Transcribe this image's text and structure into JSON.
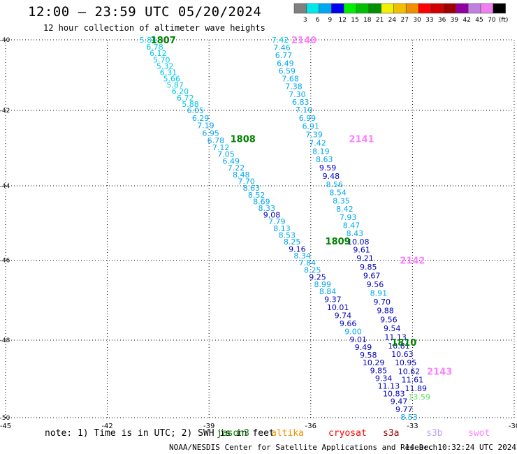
{
  "header": {
    "title": "12:00 – 23:59 UTC 05/20/2024",
    "subtitle": "12 hour collection of altimeter wave heights"
  },
  "colorbar": {
    "unit_label": "(ft)",
    "levels": [
      {
        "label": "3",
        "color": "#808080"
      },
      {
        "label": "6",
        "color": "#00e8e8"
      },
      {
        "label": "9",
        "color": "#00a8f0"
      },
      {
        "label": "12",
        "color": "#0000f0"
      },
      {
        "label": "15",
        "color": "#00f000"
      },
      {
        "label": "18",
        "color": "#00c000"
      },
      {
        "label": "21",
        "color": "#009000"
      },
      {
        "label": "24",
        "color": "#f0f000"
      },
      {
        "label": "27",
        "color": "#f0c000"
      },
      {
        "label": "30",
        "color": "#f09000"
      },
      {
        "label": "33",
        "color": "#ff0000"
      },
      {
        "label": "36",
        "color": "#d00000"
      },
      {
        "label": "39",
        "color": "#a00000"
      },
      {
        "label": "42",
        "color": "#9000a0"
      },
      {
        "label": "45",
        "color": "#c080e0"
      },
      {
        "label": "70",
        "color": "#f080f0"
      },
      {
        "label": "",
        "color": "#000000"
      }
    ]
  },
  "footer": {
    "note": "note: 1) Time is in UTC; 2) SWH is in feet",
    "credit": "NOAA/NESDIS Center for Satellite Applications and Research",
    "timestamp": "14 Dec 10:32:24 UTC 2024",
    "satellites": [
      {
        "name": "jason3",
        "color": "#008000"
      },
      {
        "name": "altika",
        "color": "#f09000"
      },
      {
        "name": "cryosat",
        "color": "#ff0000"
      },
      {
        "name": "s3a",
        "color": "#a00000"
      },
      {
        "name": "s3b",
        "color": "#c0a0ff"
      },
      {
        "name": "swot",
        "color": "#ff80ff"
      }
    ]
  },
  "chart_data": {
    "type": "scatter",
    "title": "12:00 – 23:59 UTC 05/20/2024",
    "subtitle": "12 hour collection of altimeter wave heights",
    "xlabel": "",
    "ylabel": "",
    "xlim": [
      -45,
      -30
    ],
    "ylim": [
      -50,
      -40
    ],
    "xticks": [
      -45,
      -42,
      -39,
      -36,
      -33,
      -30
    ],
    "yticks": [
      -40,
      -42,
      -44,
      -46,
      -48,
      -50
    ],
    "grid": true,
    "colors": {
      "light": "#00c8e8",
      "mid": "#00a8f0",
      "dark": "#0000c0",
      "lime": "#60e060"
    },
    "series": [
      {
        "name": "jason3",
        "points": [
          {
            "x": -40.8,
            "y": -40.0,
            "v": "5.84",
            "c": "light"
          },
          {
            "x": -40.6,
            "y": -40.2,
            "v": "6.78",
            "c": "light"
          },
          {
            "x": -40.5,
            "y": -40.38,
            "v": "6.12",
            "c": "light"
          },
          {
            "x": -40.4,
            "y": -40.56,
            "v": "5.70",
            "c": "light"
          },
          {
            "x": -40.3,
            "y": -40.74,
            "v": "5.32",
            "c": "light"
          },
          {
            "x": -40.2,
            "y": -40.92,
            "v": "6.31",
            "c": "light"
          },
          {
            "x": -40.1,
            "y": -41.1,
            "v": "5.66",
            "c": "light"
          },
          {
            "x": -40.0,
            "y": -41.28,
            "v": "5.87",
            "c": "light"
          },
          {
            "x": -39.85,
            "y": -41.46,
            "v": "6.20",
            "c": "light"
          },
          {
            "x": -39.7,
            "y": -41.64,
            "v": "6.72",
            "c": "light"
          },
          {
            "x": -39.55,
            "y": -41.82,
            "v": "5.88",
            "c": "light"
          },
          {
            "x": -39.4,
            "y": -42.0,
            "v": "6.05",
            "c": "mid"
          },
          {
            "x": -39.25,
            "y": -42.2,
            "v": "6.29",
            "c": "mid"
          },
          {
            "x": -39.1,
            "y": -42.4,
            "v": "7.19",
            "c": "mid"
          },
          {
            "x": -38.95,
            "y": -42.6,
            "v": "6.95",
            "c": "mid"
          },
          {
            "x": -38.8,
            "y": -42.8,
            "v": "6.78",
            "c": "mid"
          },
          {
            "x": -38.65,
            "y": -42.98,
            "v": "7.12",
            "c": "mid"
          },
          {
            "x": -38.5,
            "y": -43.16,
            "v": "7.05",
            "c": "mid"
          },
          {
            "x": -38.35,
            "y": -43.34,
            "v": "6.49",
            "c": "mid"
          },
          {
            "x": -38.2,
            "y": -43.52,
            "v": "7.22",
            "c": "mid"
          },
          {
            "x": -38.05,
            "y": -43.7,
            "v": "8.48",
            "c": "mid"
          },
          {
            "x": -37.9,
            "y": -43.88,
            "v": "7.70",
            "c": "mid"
          },
          {
            "x": -37.75,
            "y": -44.06,
            "v": "8.63",
            "c": "mid"
          },
          {
            "x": -37.6,
            "y": -44.24,
            "v": "8.52",
            "c": "mid"
          },
          {
            "x": -37.45,
            "y": -44.42,
            "v": "8.69",
            "c": "mid"
          },
          {
            "x": -37.3,
            "y": -44.6,
            "v": "8.33",
            "c": "mid"
          },
          {
            "x": -37.15,
            "y": -44.78,
            "v": "9.08",
            "c": "dark"
          },
          {
            "x": -37.0,
            "y": -44.96,
            "v": "7.79",
            "c": "mid"
          },
          {
            "x": -36.85,
            "y": -45.14,
            "v": "8.13",
            "c": "mid"
          },
          {
            "x": -36.7,
            "y": -45.32,
            "v": "8.53",
            "c": "mid"
          },
          {
            "x": -36.55,
            "y": -45.5,
            "v": "8.25",
            "c": "mid"
          },
          {
            "x": -36.4,
            "y": -45.7,
            "v": "9.16",
            "c": "dark"
          },
          {
            "x": -36.25,
            "y": -45.88,
            "v": "8.34",
            "c": "mid"
          },
          {
            "x": -36.1,
            "y": -46.06,
            "v": "7.84",
            "c": "mid"
          },
          {
            "x": -35.95,
            "y": -46.24,
            "v": "8.25",
            "c": "mid"
          },
          {
            "x": -35.8,
            "y": -46.42,
            "v": "9.25",
            "c": "dark"
          },
          {
            "x": -35.65,
            "y": -46.6,
            "v": "8.99",
            "c": "mid"
          },
          {
            "x": -35.5,
            "y": -46.78,
            "v": "8.84",
            "c": "mid"
          },
          {
            "x": -35.35,
            "y": -46.98,
            "v": "9.37",
            "c": "dark"
          },
          {
            "x": -35.2,
            "y": -47.18,
            "v": "10.01",
            "c": "dark"
          },
          {
            "x": -35.05,
            "y": -47.38,
            "v": "9.74",
            "c": "dark"
          },
          {
            "x": -34.9,
            "y": -47.58,
            "v": "9.66",
            "c": "dark"
          },
          {
            "x": -34.75,
            "y": -47.78,
            "v": "9.00",
            "c": "mid"
          },
          {
            "x": -34.6,
            "y": -47.98,
            "v": "9.01",
            "c": "dark"
          },
          {
            "x": -34.45,
            "y": -48.18,
            "v": "9.49",
            "c": "dark"
          },
          {
            "x": -34.3,
            "y": -48.38,
            "v": "9.58",
            "c": "dark"
          },
          {
            "x": -34.15,
            "y": -48.58,
            "v": "10.29",
            "c": "dark"
          },
          {
            "x": -34.0,
            "y": -48.78,
            "v": "9.85",
            "c": "dark"
          },
          {
            "x": -33.85,
            "y": -48.98,
            "v": "9.34",
            "c": "dark"
          },
          {
            "x": -33.7,
            "y": -49.18,
            "v": "11.13",
            "c": "dark"
          },
          {
            "x": -33.55,
            "y": -49.38,
            "v": "10.83",
            "c": "dark"
          },
          {
            "x": -33.4,
            "y": -49.58,
            "v": "9.47",
            "c": "dark"
          },
          {
            "x": -33.25,
            "y": -49.78,
            "v": "9.77",
            "c": "dark"
          },
          {
            "x": -33.1,
            "y": -49.98,
            "v": "8.53",
            "c": "mid"
          }
        ]
      },
      {
        "name": "swot",
        "points": [
          {
            "x": -36.9,
            "y": -40.0,
            "v": "7.42",
            "c": "light"
          },
          {
            "x": -36.85,
            "y": -40.22,
            "v": "7.46",
            "c": "mid"
          },
          {
            "x": -36.8,
            "y": -40.44,
            "v": "6.77",
            "c": "mid"
          },
          {
            "x": -36.75,
            "y": -40.66,
            "v": "6.49",
            "c": "mid"
          },
          {
            "x": -36.7,
            "y": -40.88,
            "v": "6.59",
            "c": "mid"
          },
          {
            "x": -36.6,
            "y": -41.1,
            "v": "7.68",
            "c": "mid"
          },
          {
            "x": -36.5,
            "y": -41.32,
            "v": "7.38",
            "c": "mid"
          },
          {
            "x": -36.4,
            "y": -41.54,
            "v": "7.30",
            "c": "mid"
          },
          {
            "x": -36.3,
            "y": -41.76,
            "v": "6.83",
            "c": "mid"
          },
          {
            "x": -36.2,
            "y": -41.98,
            "v": "7.10",
            "c": "mid"
          },
          {
            "x": -36.1,
            "y": -42.2,
            "v": "6.99",
            "c": "mid"
          },
          {
            "x": -36.0,
            "y": -42.42,
            "v": "6.91",
            "c": "mid"
          },
          {
            "x": -35.9,
            "y": -42.64,
            "v": "7.39",
            "c": "mid"
          },
          {
            "x": -35.8,
            "y": -42.86,
            "v": "7.42",
            "c": "mid"
          },
          {
            "x": -35.7,
            "y": -43.08,
            "v": "8.19",
            "c": "mid"
          },
          {
            "x": -35.6,
            "y": -43.3,
            "v": "8.63",
            "c": "mid"
          },
          {
            "x": -35.5,
            "y": -43.52,
            "v": "9.59",
            "c": "dark"
          },
          {
            "x": -35.4,
            "y": -43.74,
            "v": "9.48",
            "c": "dark"
          },
          {
            "x": -35.3,
            "y": -43.96,
            "v": "8.56",
            "c": "mid"
          },
          {
            "x": -35.2,
            "y": -44.18,
            "v": "8.54",
            "c": "mid"
          },
          {
            "x": -35.1,
            "y": -44.4,
            "v": "8.35",
            "c": "mid"
          },
          {
            "x": -35.0,
            "y": -44.62,
            "v": "8.42",
            "c": "mid"
          },
          {
            "x": -34.9,
            "y": -44.84,
            "v": "7.93",
            "c": "mid"
          },
          {
            "x": -34.8,
            "y": -45.06,
            "v": "8.47",
            "c": "mid"
          },
          {
            "x": -34.7,
            "y": -45.28,
            "v": "8.43",
            "c": "mid"
          },
          {
            "x": -34.6,
            "y": -45.5,
            "v": "10.08",
            "c": "dark"
          },
          {
            "x": -34.5,
            "y": -45.72,
            "v": "9.61",
            "c": "dark"
          },
          {
            "x": -34.4,
            "y": -45.94,
            "v": "9.21",
            "c": "dark"
          },
          {
            "x": -34.3,
            "y": -46.16,
            "v": "9.85",
            "c": "dark"
          },
          {
            "x": -34.2,
            "y": -46.38,
            "v": "9.67",
            "c": "dark"
          },
          {
            "x": -34.1,
            "y": -46.6,
            "v": "9.56",
            "c": "dark"
          },
          {
            "x": -34.0,
            "y": -46.82,
            "v": "8.91",
            "c": "mid"
          },
          {
            "x": -33.9,
            "y": -47.04,
            "v": "9.70",
            "c": "dark"
          },
          {
            "x": -33.8,
            "y": -47.26,
            "v": "9.88",
            "c": "dark"
          },
          {
            "x": -33.7,
            "y": -47.48,
            "v": "9.56",
            "c": "dark"
          },
          {
            "x": -33.6,
            "y": -47.7,
            "v": "9.54",
            "c": "dark"
          },
          {
            "x": -33.5,
            "y": -47.92,
            "v": "11.13",
            "c": "dark"
          },
          {
            "x": -33.4,
            "y": -48.14,
            "v": "10.81",
            "c": "dark"
          },
          {
            "x": -33.3,
            "y": -48.36,
            "v": "10.63",
            "c": "dark"
          },
          {
            "x": -33.2,
            "y": -48.58,
            "v": "10.95",
            "c": "dark"
          },
          {
            "x": -33.1,
            "y": -48.8,
            "v": "10.62",
            "c": "dark"
          },
          {
            "x": -33.0,
            "y": -49.02,
            "v": "11.61",
            "c": "dark"
          },
          {
            "x": -32.9,
            "y": -49.24,
            "v": "11.89",
            "c": "dark"
          },
          {
            "x": -32.8,
            "y": -49.46,
            "v": "13.59",
            "c": "lime"
          }
        ]
      }
    ],
    "annotations": [
      {
        "text": "1807",
        "x": -40.35,
        "y": -40.0,
        "color": "#008000"
      },
      {
        "text": "1808",
        "x": -38.0,
        "y": -42.75,
        "color": "#008000"
      },
      {
        "text": "1809",
        "x": -35.2,
        "y": -45.48,
        "color": "#008000"
      },
      {
        "text": "1810",
        "x": -33.25,
        "y": -48.05,
        "color": "#008000"
      },
      {
        "text": "2140",
        "x": -36.2,
        "y": -40.0,
        "color": "#ff80ff"
      },
      {
        "text": "2141",
        "x": -34.5,
        "y": -42.75,
        "color": "#ff80ff"
      },
      {
        "text": "2142",
        "x": -33.0,
        "y": -46.0,
        "color": "#ff80ff"
      },
      {
        "text": "2143",
        "x": -32.2,
        "y": -48.8,
        "color": "#ff80ff"
      }
    ]
  }
}
